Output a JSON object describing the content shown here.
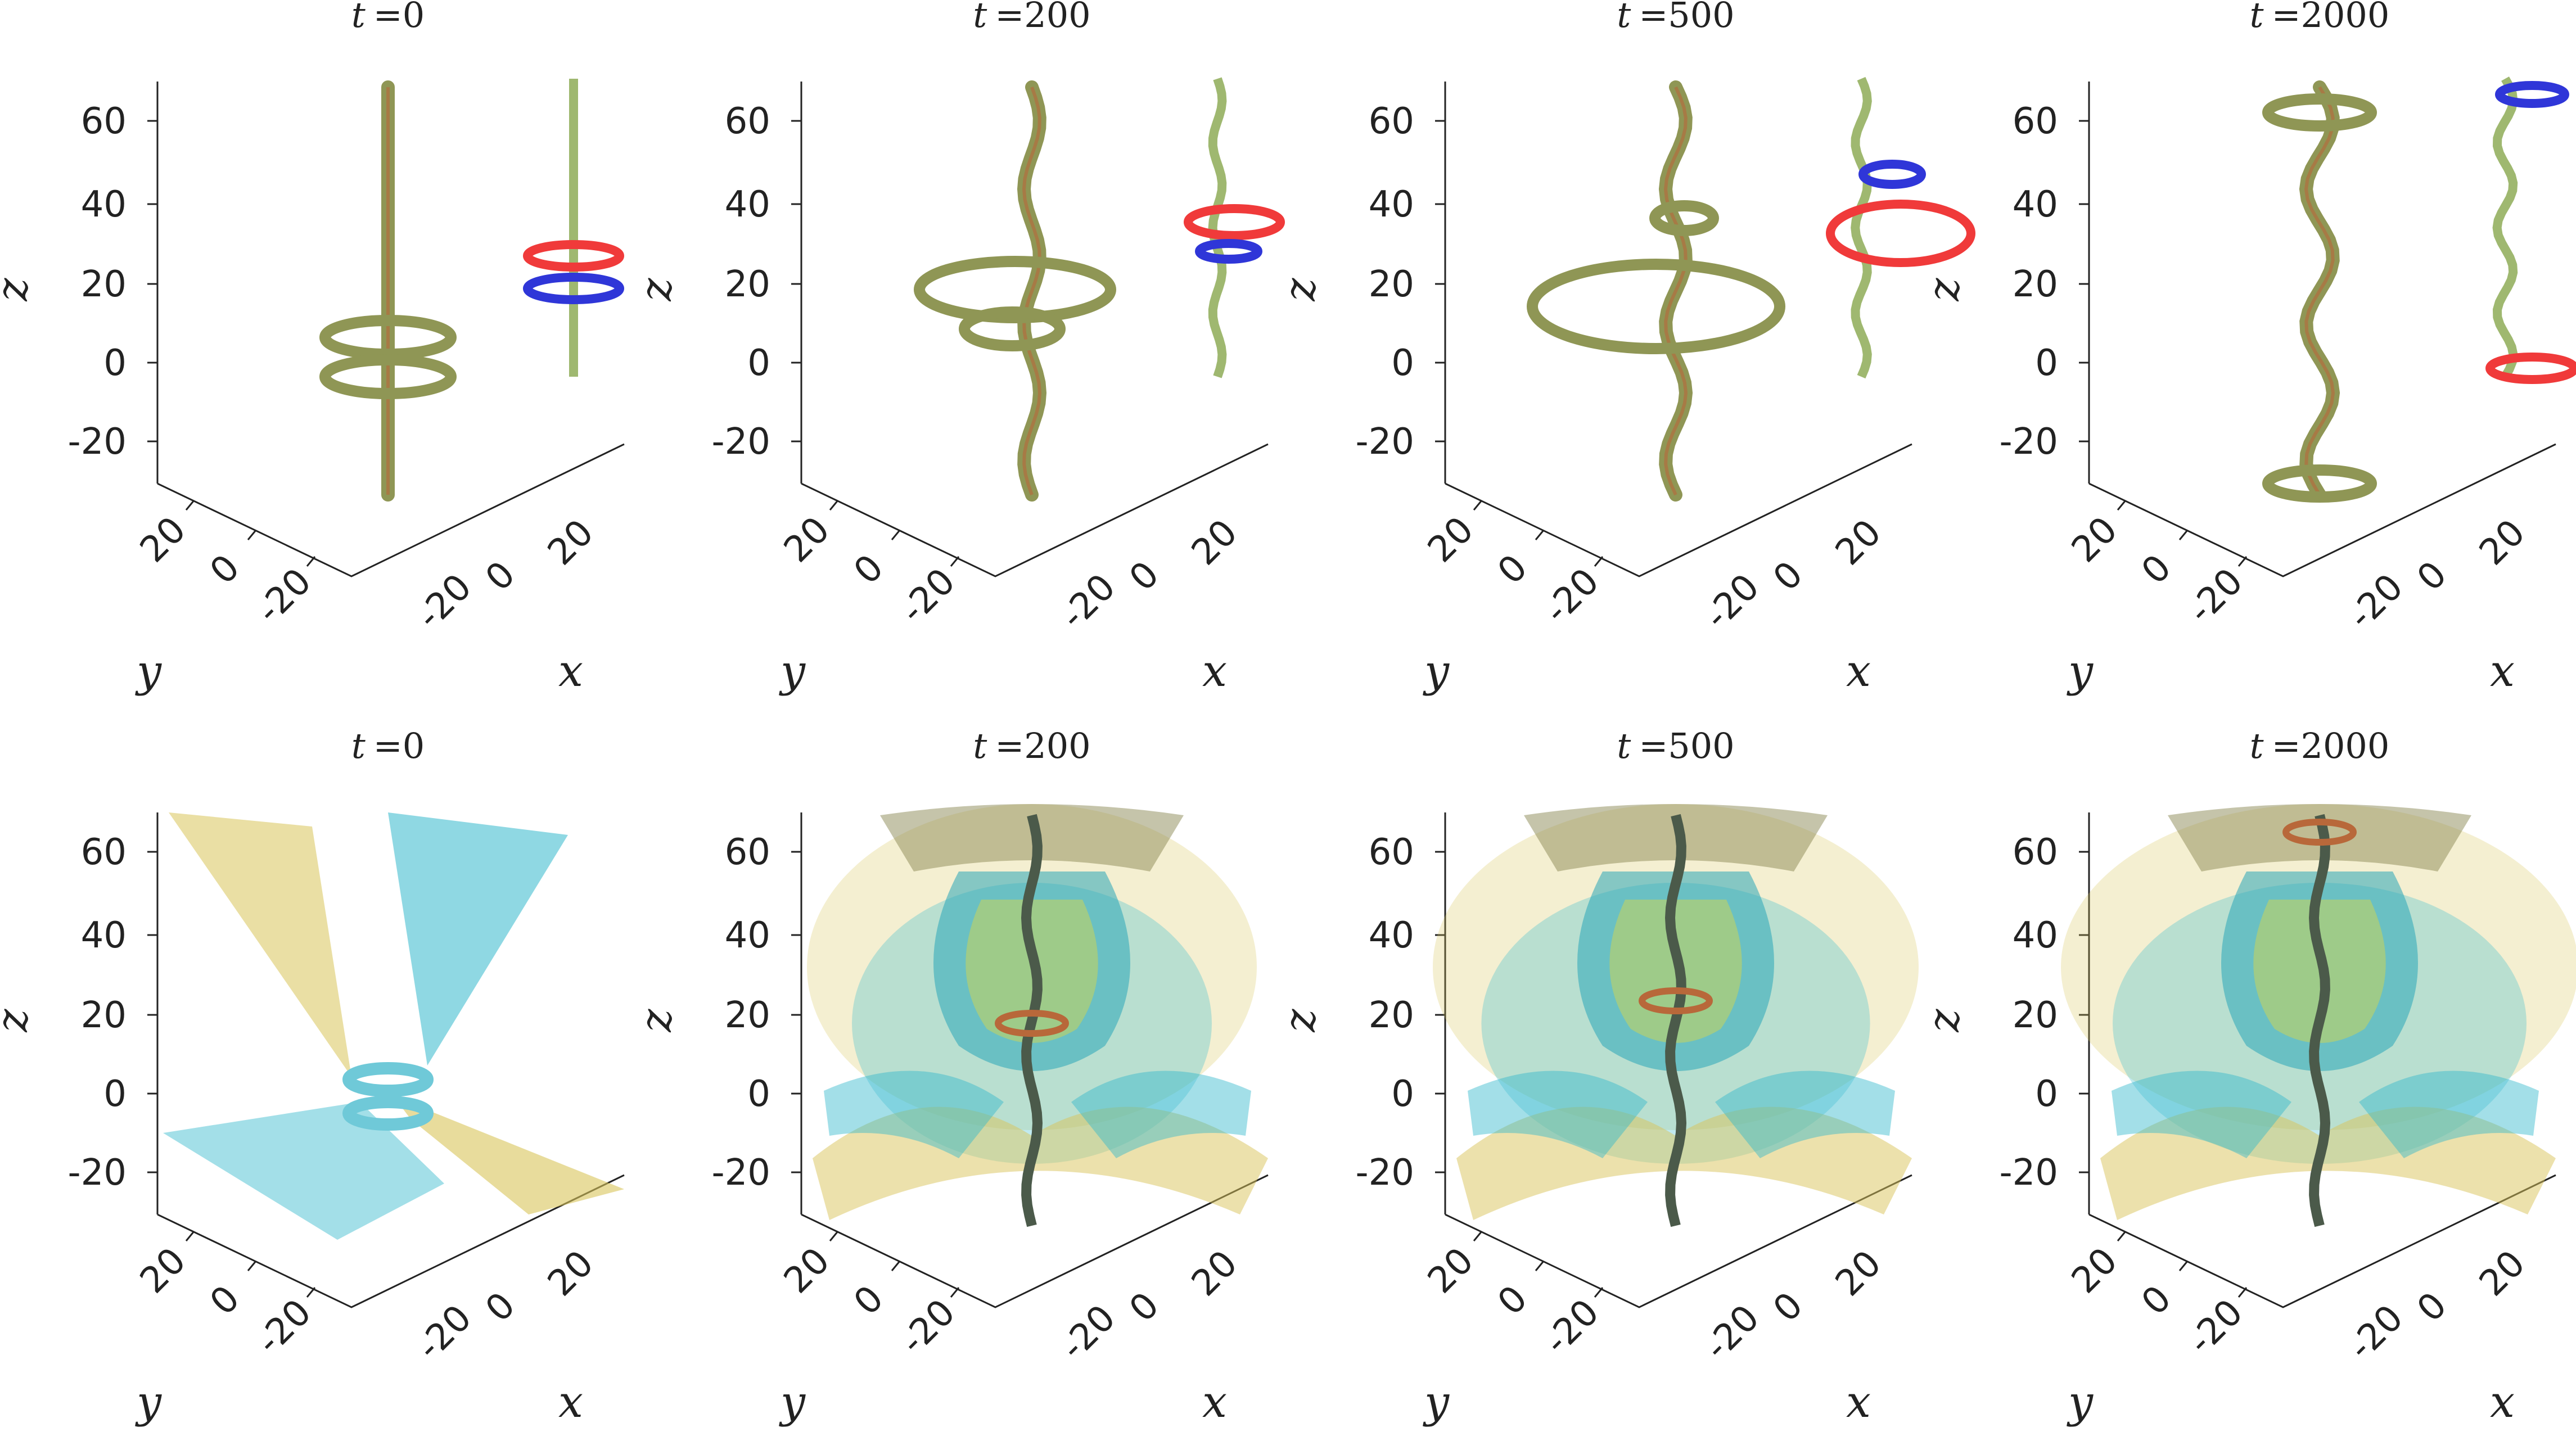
{
  "panels": [
    {
      "row": 0,
      "time_var": "t",
      "time_value": "=0",
      "mode": "tubes",
      "stage": 0
    },
    {
      "row": 0,
      "time_var": "t",
      "time_value": "=200",
      "mode": "tubes",
      "stage": 1
    },
    {
      "row": 0,
      "time_var": "t",
      "time_value": "=500",
      "mode": "tubes",
      "stage": 2
    },
    {
      "row": 0,
      "time_var": "t",
      "time_value": "=2000",
      "mode": "tubes",
      "stage": 3
    },
    {
      "row": 1,
      "time_var": "t",
      "time_value": "=0",
      "mode": "surfaces",
      "stage": 0
    },
    {
      "row": 1,
      "time_var": "t",
      "time_value": "=200",
      "mode": "surfaces",
      "stage": 1
    },
    {
      "row": 1,
      "time_var": "t",
      "time_value": "=500",
      "mode": "surfaces",
      "stage": 2
    },
    {
      "row": 1,
      "time_var": "t",
      "time_value": "=2000",
      "mode": "surfaces",
      "stage": 3
    }
  ],
  "axes": {
    "z_label": "z",
    "x_label": "x",
    "y_label": "y",
    "z_ticks": [
      "60",
      "40",
      "20",
      "0",
      "-20"
    ],
    "y_ticks": [
      "20",
      "0",
      "-20"
    ],
    "x_ticks": [
      "-20",
      "0",
      "20"
    ]
  },
  "colors": {
    "ring_red": "#f03a3a",
    "ring_blue": "#2f36d8",
    "tube_olive": "#8f9655",
    "surface_yellow": "#d9c45a",
    "surface_cyan": "#33b8cc"
  }
}
